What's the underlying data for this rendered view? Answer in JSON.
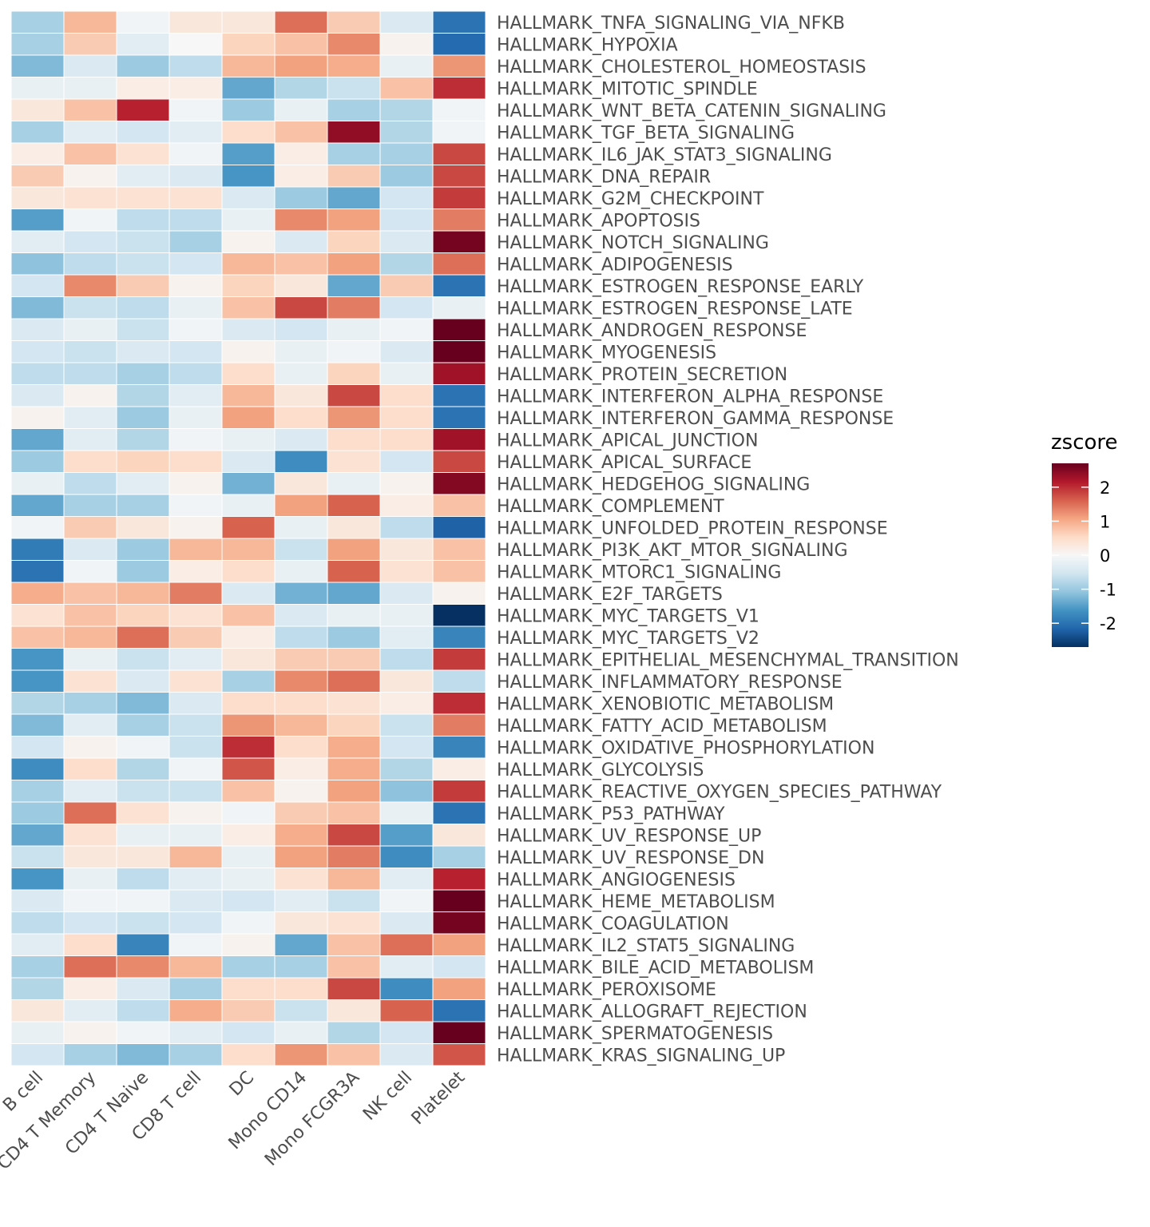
{
  "chart_data": {
    "type": "heatmap",
    "columns": [
      "B cell",
      "CD4 T Memory",
      "CD4 T Naive",
      "CD8 T cell",
      "DC",
      "Mono CD14",
      "Mono FCGR3A",
      "NK cell",
      "Platelet"
    ],
    "rows": [
      "HALLMARK_TNFA_SIGNALING_VIA_NFKB",
      "HALLMARK_HYPOXIA",
      "HALLMARK_CHOLESTEROL_HOMEOSTASIS",
      "HALLMARK_MITOTIC_SPINDLE",
      "HALLMARK_WNT_BETA_CATENIN_SIGNALING",
      "HALLMARK_TGF_BETA_SIGNALING",
      "HALLMARK_IL6_JAK_STAT3_SIGNALING",
      "HALLMARK_DNA_REPAIR",
      "HALLMARK_G2M_CHECKPOINT",
      "HALLMARK_APOPTOSIS",
      "HALLMARK_NOTCH_SIGNALING",
      "HALLMARK_ADIPOGENESIS",
      "HALLMARK_ESTROGEN_RESPONSE_EARLY",
      "HALLMARK_ESTROGEN_RESPONSE_LATE",
      "HALLMARK_ANDROGEN_RESPONSE",
      "HALLMARK_MYOGENESIS",
      "HALLMARK_PROTEIN_SECRETION",
      "HALLMARK_INTERFERON_ALPHA_RESPONSE",
      "HALLMARK_INTERFERON_GAMMA_RESPONSE",
      "HALLMARK_APICAL_JUNCTION",
      "HALLMARK_APICAL_SURFACE",
      "HALLMARK_HEDGEHOG_SIGNALING",
      "HALLMARK_COMPLEMENT",
      "HALLMARK_UNFOLDED_PROTEIN_RESPONSE",
      "HALLMARK_PI3K_AKT_MTOR_SIGNALING",
      "HALLMARK_MTORC1_SIGNALING",
      "HALLMARK_E2F_TARGETS",
      "HALLMARK_MYC_TARGETS_V1",
      "HALLMARK_MYC_TARGETS_V2",
      "HALLMARK_EPITHELIAL_MESENCHYMAL_TRANSITION",
      "HALLMARK_INFLAMMATORY_RESPONSE",
      "HALLMARK_XENOBIOTIC_METABOLISM",
      "HALLMARK_FATTY_ACID_METABOLISM",
      "HALLMARK_OXIDATIVE_PHOSPHORYLATION",
      "HALLMARK_GLYCOLYSIS",
      "HALLMARK_REACTIVE_OXYGEN_SPECIES_PATHWAY",
      "HALLMARK_P53_PATHWAY",
      "HALLMARK_UV_RESPONSE_UP",
      "HALLMARK_UV_RESPONSE_DN",
      "HALLMARK_ANGIOGENESIS",
      "HALLMARK_HEME_METABOLISM",
      "HALLMARK_COAGULATION",
      "HALLMARK_IL2_STAT5_SIGNALING",
      "HALLMARK_BILE_ACID_METABOLISM",
      "HALLMARK_PEROXISOME",
      "HALLMARK_ALLOGRAFT_REJECTION",
      "HALLMARK_SPERMATOGENESIS",
      "HALLMARK_KRAS_SIGNALING_UP"
    ],
    "values": [
      [
        -0.9,
        0.9,
        -0.1,
        0.3,
        0.3,
        1.5,
        0.7,
        -0.4,
        -2.0
      ],
      [
        -0.9,
        0.7,
        -0.3,
        0.0,
        0.6,
        0.8,
        1.3,
        0.1,
        -2.1
      ],
      [
        -1.2,
        -0.4,
        -1.0,
        -0.7,
        0.9,
        1.1,
        1.0,
        -0.2,
        1.2
      ],
      [
        -0.2,
        -0.2,
        0.2,
        0.2,
        -1.4,
        -0.8,
        -0.6,
        0.8,
        2.0
      ],
      [
        0.3,
        0.8,
        2.1,
        -0.1,
        -1.0,
        -0.2,
        -0.9,
        -0.8,
        -0.1
      ],
      [
        -0.9,
        -0.3,
        -0.5,
        -0.3,
        0.5,
        0.8,
        2.4,
        -0.8,
        -0.1
      ],
      [
        0.2,
        0.8,
        0.4,
        -0.1,
        -1.5,
        0.2,
        -0.9,
        -0.9,
        1.8
      ],
      [
        0.7,
        0.1,
        -0.3,
        -0.4,
        -1.6,
        0.2,
        0.7,
        -1.0,
        1.8
      ],
      [
        0.3,
        0.4,
        0.4,
        0.4,
        -0.4,
        -1.0,
        -1.4,
        -0.5,
        1.9
      ],
      [
        -1.5,
        -0.1,
        -0.7,
        -0.7,
        -0.2,
        1.3,
        1.1,
        -0.5,
        1.4
      ],
      [
        -0.3,
        -0.5,
        -0.6,
        -0.9,
        0.1,
        -0.4,
        0.6,
        -0.4,
        2.6
      ],
      [
        -1.1,
        -0.7,
        -0.6,
        -0.5,
        0.9,
        0.8,
        1.1,
        -0.8,
        1.5
      ],
      [
        -0.5,
        1.3,
        0.7,
        0.1,
        0.6,
        0.3,
        -1.4,
        0.7,
        -2.0
      ],
      [
        -1.2,
        -0.6,
        -0.7,
        -0.2,
        0.8,
        1.8,
        1.4,
        -0.5,
        -0.2
      ],
      [
        -0.4,
        -0.2,
        -0.6,
        -0.1,
        -0.4,
        -0.5,
        -0.2,
        -0.1,
        2.9
      ],
      [
        -0.5,
        -0.6,
        -0.4,
        -0.5,
        0.1,
        -0.2,
        -0.1,
        -0.4,
        2.9
      ],
      [
        -0.7,
        -0.7,
        -0.9,
        -0.7,
        0.5,
        -0.2,
        0.6,
        -0.2,
        2.3
      ],
      [
        -0.4,
        0.1,
        -0.8,
        -0.3,
        0.9,
        0.3,
        1.8,
        0.5,
        -2.0
      ],
      [
        0.1,
        -0.3,
        -1.0,
        -0.2,
        1.1,
        0.5,
        1.2,
        0.5,
        -2.0
      ],
      [
        -1.4,
        -0.3,
        -0.8,
        -0.1,
        -0.2,
        -0.4,
        0.5,
        0.5,
        2.3
      ],
      [
        -1.0,
        0.5,
        0.6,
        0.5,
        -0.4,
        -1.7,
        0.4,
        -0.5,
        1.8
      ],
      [
        -0.2,
        -0.7,
        -0.3,
        0.1,
        -1.3,
        0.3,
        -0.2,
        0.1,
        2.5
      ],
      [
        -1.4,
        -0.9,
        -0.9,
        -0.1,
        -0.2,
        1.1,
        1.6,
        0.2,
        0.8
      ],
      [
        -0.1,
        0.7,
        0.3,
        0.1,
        1.6,
        -0.2,
        0.3,
        -0.7,
        -2.2
      ],
      [
        -1.9,
        -0.4,
        -1.0,
        0.9,
        0.9,
        -0.6,
        1.1,
        0.3,
        0.8
      ],
      [
        -2.0,
        -0.1,
        -1.0,
        0.2,
        0.5,
        -0.2,
        1.6,
        0.4,
        0.8
      ],
      [
        1.0,
        0.8,
        0.9,
        1.4,
        -0.4,
        -1.3,
        -1.4,
        -0.4,
        0.1
      ],
      [
        0.4,
        0.8,
        0.6,
        0.4,
        0.8,
        -0.4,
        -0.2,
        -0.2,
        -2.7
      ],
      [
        0.8,
        0.9,
        1.5,
        0.7,
        0.2,
        -0.7,
        -1.0,
        -0.3,
        -1.8
      ],
      [
        -1.6,
        -0.2,
        -0.6,
        -0.3,
        0.3,
        0.7,
        0.7,
        -0.7,
        1.9
      ],
      [
        -1.6,
        0.4,
        -0.4,
        0.4,
        -0.9,
        1.3,
        1.5,
        0.3,
        -0.7
      ],
      [
        -0.8,
        -0.9,
        -1.2,
        -0.4,
        0.5,
        0.5,
        0.4,
        0.2,
        2.0
      ],
      [
        -1.2,
        -0.3,
        -0.9,
        -0.6,
        1.2,
        0.9,
        0.6,
        -0.6,
        1.4
      ],
      [
        -0.5,
        0.1,
        -0.1,
        -0.6,
        2.0,
        0.5,
        1.0,
        -0.5,
        -1.8
      ],
      [
        -1.7,
        0.5,
        -0.8,
        -0.1,
        1.7,
        0.2,
        1.0,
        -0.8,
        0.2
      ],
      [
        -0.9,
        -0.3,
        -0.6,
        -0.6,
        0.8,
        0.1,
        1.1,
        -1.1,
        1.9
      ],
      [
        -1.0,
        1.5,
        0.4,
        0.1,
        -0.1,
        0.7,
        0.8,
        -0.2,
        -2.0
      ],
      [
        -1.4,
        0.4,
        -0.2,
        -0.2,
        0.2,
        1.0,
        1.8,
        -1.5,
        0.3
      ],
      [
        -0.6,
        0.3,
        0.3,
        0.9,
        -0.2,
        1.1,
        1.4,
        -1.7,
        -0.9
      ],
      [
        -1.6,
        -0.2,
        -0.7,
        -0.3,
        -0.2,
        0.4,
        0.9,
        -0.3,
        2.1
      ],
      [
        -0.4,
        -0.1,
        -0.1,
        -0.4,
        -0.5,
        -0.3,
        -0.6,
        -0.1,
        2.9
      ],
      [
        -0.7,
        -0.5,
        -0.6,
        -0.5,
        -0.1,
        0.3,
        0.4,
        -0.4,
        2.6
      ],
      [
        -0.3,
        0.5,
        -1.8,
        -0.1,
        0.1,
        -1.4,
        0.8,
        1.5,
        1.1
      ],
      [
        -0.9,
        1.5,
        1.3,
        0.9,
        -0.9,
        -0.9,
        0.8,
        -0.3,
        -0.5
      ],
      [
        -0.8,
        0.2,
        -0.4,
        -0.9,
        0.5,
        0.5,
        1.8,
        -1.7,
        1.1
      ],
      [
        0.3,
        -0.3,
        -0.7,
        1.0,
        0.7,
        -0.6,
        0.3,
        1.6,
        -2.0
      ],
      [
        -0.2,
        0.1,
        -0.1,
        -0.3,
        -0.5,
        -0.2,
        -0.8,
        -0.5,
        2.9
      ],
      [
        -0.5,
        -0.9,
        -1.2,
        -0.9,
        0.5,
        1.2,
        0.8,
        -0.4,
        1.7
      ]
    ],
    "legend": {
      "title": "zscore",
      "ticks": [
        2,
        1,
        0,
        -1,
        -2
      ],
      "range": [
        -2.7,
        2.7
      ],
      "colors": [
        "#053061",
        "#2166ac",
        "#4393c3",
        "#92c5de",
        "#d1e5f0",
        "#f7f7f7",
        "#fddbc7",
        "#f4a582",
        "#d6604d",
        "#b2182b",
        "#67001f"
      ]
    }
  }
}
